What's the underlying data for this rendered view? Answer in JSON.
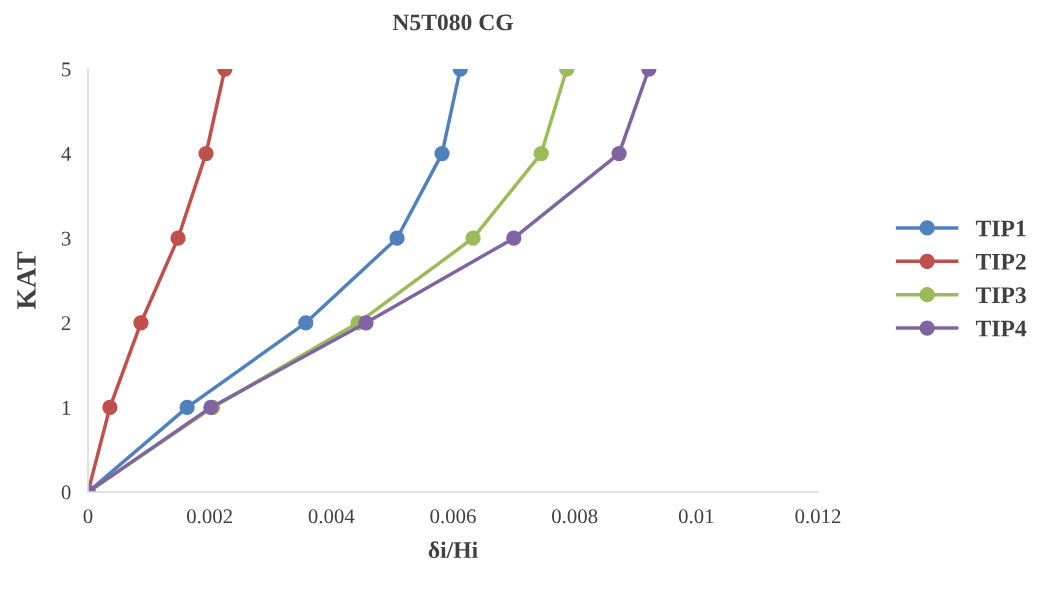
{
  "chart_data": {
    "type": "line",
    "title": "N5T080 CG",
    "xlabel": "δi/Hi",
    "ylabel": "KAT",
    "xlim": [
      0,
      0.012
    ],
    "xticks": [
      0,
      0.002,
      0.004,
      0.006,
      0.008,
      0.01,
      0.012
    ],
    "ylim": [
      0,
      5
    ],
    "yticks": [
      0,
      1,
      2,
      3,
      4,
      5
    ],
    "grid": false,
    "legend": "right",
    "marker": "circle",
    "line_style": "solid",
    "series": [
      {
        "name": "TIP1",
        "color": "#4f81bd",
        "x": [
          0,
          0.00163,
          0.00358,
          0.00508,
          0.00582,
          0.00612
        ],
        "values": [
          0,
          1,
          2,
          3,
          4,
          5
        ]
      },
      {
        "name": "TIP2",
        "color": "#c0504d",
        "x": [
          0,
          0.00036,
          0.00087,
          0.00148,
          0.00194,
          0.00225
        ],
        "values": [
          0,
          1,
          2,
          3,
          4,
          5
        ]
      },
      {
        "name": "TIP3",
        "color": "#9bbb59",
        "x": [
          0,
          0.00205,
          0.00444,
          0.00633,
          0.00745,
          0.00787
        ],
        "values": [
          0,
          1,
          2,
          3,
          4,
          5
        ]
      },
      {
        "name": "TIP4",
        "color": "#8064a2",
        "x": [
          0,
          0.00202,
          0.00457,
          0.007,
          0.00873,
          0.00922
        ],
        "values": [
          0,
          1,
          2,
          3,
          4,
          5
        ]
      }
    ]
  }
}
